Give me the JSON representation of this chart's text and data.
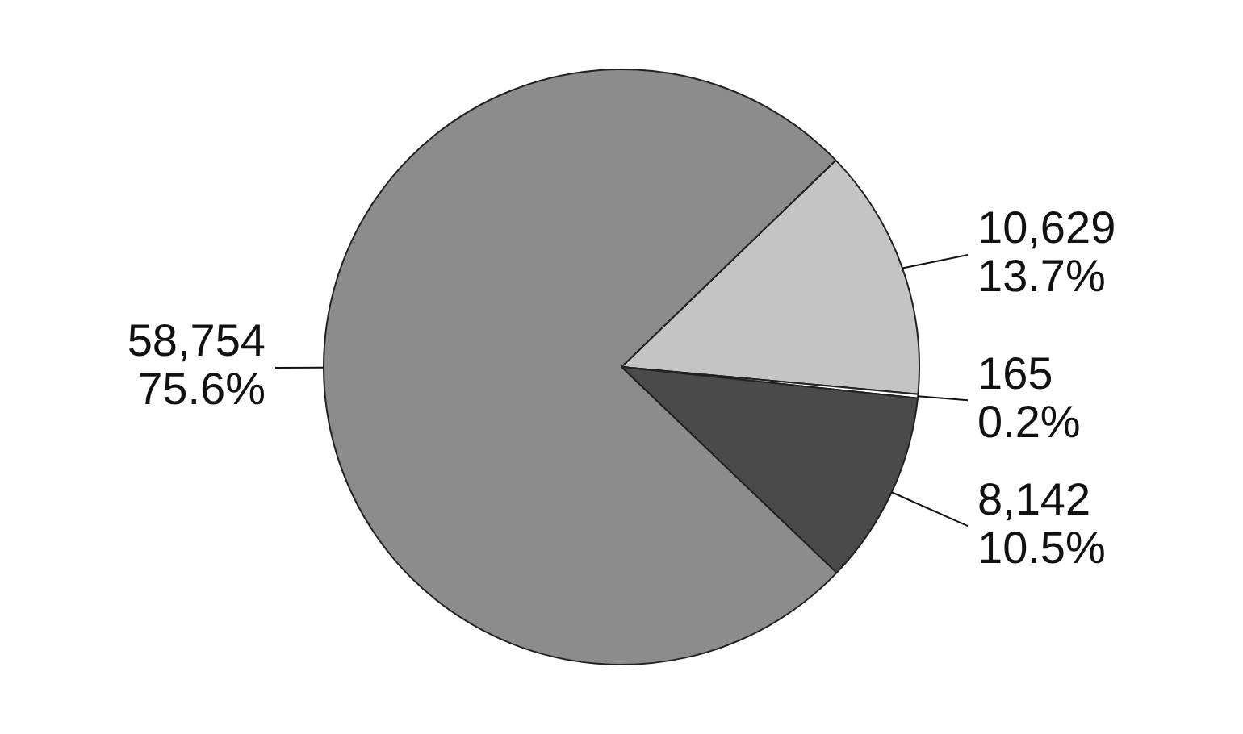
{
  "chart_data": {
    "type": "pie",
    "legend": false,
    "categories": [
      null,
      null,
      null,
      null
    ],
    "values": [
      10629,
      165,
      8142,
      58754
    ],
    "colors": [
      "#c4c4c4",
      "#ffffff",
      "#4a4a4a",
      "#8c8c8c"
    ],
    "value_labels": [
      "10,629\n13.7%",
      "165\n0.2%",
      "8,142\n10.5%",
      "58,754\n75.6%"
    ]
  }
}
